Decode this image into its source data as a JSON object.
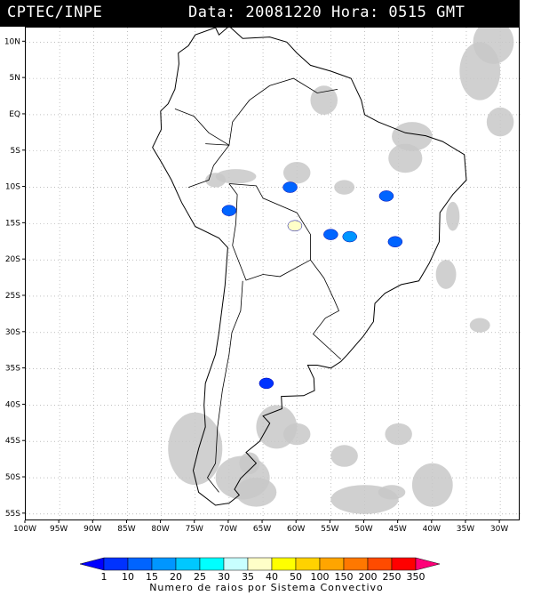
{
  "header": {
    "source": "CPTEC/INPE",
    "timestamp": "Data: 20081220 Hora: 0515 GMT"
  },
  "map": {
    "region": "South America",
    "lon_range": [
      -100,
      -27
    ],
    "lat_range": [
      -56,
      12
    ],
    "lon_ticks": [
      "100W",
      "95W",
      "90W",
      "85W",
      "80W",
      "75W",
      "70W",
      "65W",
      "60W",
      "55W",
      "50W",
      "45W",
      "40W",
      "35W",
      "30W"
    ],
    "lat_ticks": [
      "10N",
      "5N",
      "EQ",
      "5S",
      "10S",
      "15S",
      "20S",
      "25S",
      "30S",
      "35S",
      "40S",
      "45S",
      "50S",
      "55S"
    ],
    "grid": "dotted",
    "land_outline_color": "#000000",
    "cloud_color": "#c8c8c8",
    "convective_systems": [
      {
        "lat": -10.0,
        "lon": -61.0,
        "count": 10
      },
      {
        "lat": -13.2,
        "lon": -70.0,
        "count": 10
      },
      {
        "lat": -15.3,
        "lon": -60.3,
        "count": 35
      },
      {
        "lat": -16.8,
        "lon": -52.2,
        "count": 15
      },
      {
        "lat": -11.2,
        "lon": -46.8,
        "count": 10
      },
      {
        "lat": -17.5,
        "lon": -45.5,
        "count": 10
      },
      {
        "lat": -37.0,
        "lon": -64.5,
        "count": 1
      },
      {
        "lat": -16.5,
        "lon": -55.0,
        "count": 10
      }
    ]
  },
  "legend": {
    "title": "Numero de raios por Sistema Convectivo",
    "levels": [
      "1",
      "10",
      "15",
      "20",
      "25",
      "30",
      "35",
      "40",
      "50",
      "100",
      "150",
      "200",
      "250",
      "350"
    ],
    "colors": [
      "#0000ff",
      "#0032ff",
      "#0064ff",
      "#0096ff",
      "#00c8ff",
      "#00ffff",
      "#c8ffff",
      "#ffffc8",
      "#ffff00",
      "#ffd200",
      "#ffa500",
      "#ff7800",
      "#ff4b00",
      "#ff0000",
      "#ff0078"
    ]
  }
}
